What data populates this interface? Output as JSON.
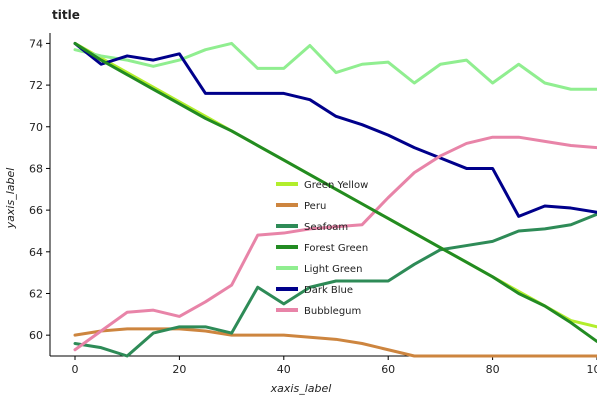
{
  "chart_data": {
    "type": "line",
    "title": "title",
    "xlabel": "xaxis_label",
    "ylabel": "yaxis_label",
    "xlim": [
      0,
      100
    ],
    "ylim": [
      59.0,
      74.5
    ],
    "x_ticks": [
      0,
      20,
      40,
      60,
      80,
      100
    ],
    "y_ticks": [
      60,
      62,
      64,
      66,
      68,
      70,
      72,
      74
    ],
    "grid": false,
    "legend_position": "center-right",
    "x": [
      0,
      5,
      10,
      15,
      20,
      25,
      30,
      35,
      40,
      45,
      50,
      55,
      60,
      65,
      70,
      75,
      80,
      85,
      90,
      95,
      100
    ],
    "series": [
      {
        "name": "Green Yellow",
        "color": "#b2ee2c",
        "values": [
          74.0,
          73.3,
          72.6,
          71.9,
          71.2,
          70.5,
          69.8,
          69.1,
          68.4,
          67.7,
          67.0,
          66.3,
          65.6,
          64.9,
          64.2,
          63.5,
          62.8,
          62.1,
          61.4,
          60.7,
          60.4
        ]
      },
      {
        "name": "Light Green",
        "color": "#90ee90",
        "values": [
          73.7,
          73.4,
          73.2,
          72.9,
          73.2,
          73.7,
          74.0,
          72.8,
          72.8,
          73.9,
          72.6,
          73.0,
          73.1,
          72.1,
          73.0,
          73.2,
          72.1,
          73.0,
          72.1,
          71.8,
          71.8
        ]
      },
      {
        "name": "Peru",
        "color": "#cd853f",
        "values": [
          60.0,
          60.2,
          60.3,
          60.3,
          60.3,
          60.2,
          60.0,
          60.0,
          60.0,
          59.9,
          59.8,
          59.6,
          59.3,
          59.0,
          59.0,
          59.0,
          59.0,
          59.0,
          59.0,
          59.0,
          59.0
        ]
      },
      {
        "name": "Seafoam",
        "color": "#2e8b57",
        "values": [
          59.6,
          59.4,
          59.0,
          60.1,
          60.4,
          60.4,
          60.1,
          62.3,
          61.5,
          62.3,
          62.6,
          62.6,
          62.6,
          63.4,
          64.1,
          64.3,
          64.5,
          65.0,
          65.1,
          65.3,
          65.8
        ]
      },
      {
        "name": "Dark Blue",
        "color": "#00008b",
        "values": [
          74.0,
          73.0,
          73.4,
          73.2,
          73.5,
          71.6,
          71.6,
          71.6,
          71.6,
          71.3,
          70.5,
          70.1,
          69.6,
          69.0,
          68.5,
          68.0,
          68.0,
          65.7,
          66.2,
          66.1,
          65.9
        ]
      },
      {
        "name": "Bubblegum",
        "color": "#e884a8",
        "values": [
          59.3,
          60.2,
          61.1,
          61.2,
          60.9,
          61.6,
          62.4,
          64.8,
          64.9,
          65.1,
          65.2,
          65.3,
          66.6,
          67.8,
          68.6,
          69.2,
          69.5,
          69.5,
          69.3,
          69.1,
          69.0
        ]
      },
      {
        "name": "Forest Green",
        "color": "#228b22",
        "values": [
          74.0,
          73.2,
          72.5,
          71.8,
          71.1,
          70.4,
          69.8,
          69.1,
          68.4,
          67.7,
          67.0,
          66.3,
          65.6,
          64.9,
          64.2,
          63.5,
          62.8,
          62.0,
          61.4,
          60.6,
          59.7
        ]
      }
    ],
    "colors": {
      "axis": "#000000",
      "tick": "#333333"
    }
  }
}
